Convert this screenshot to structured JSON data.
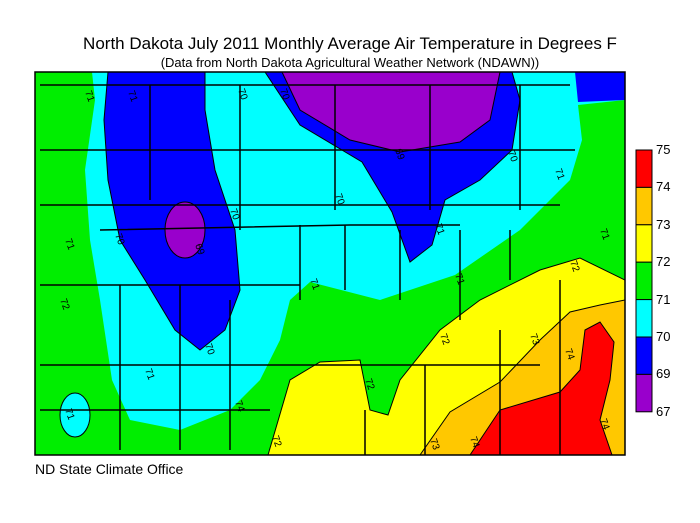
{
  "title": "North Dakota July 2011 Monthly Average Air Temperature in Degrees F",
  "subtitle": "(Data from North Dakota Agricultural Weather Network (NDAWN))",
  "footer": "ND State Climate Office",
  "legend": [
    {
      "label": "75",
      "color": "#ff0000"
    },
    {
      "label": "74",
      "color": "#ffc800"
    },
    {
      "label": "73",
      "color": "#ffff00"
    },
    {
      "label": "72",
      "color": "#00ee00"
    },
    {
      "label": "71",
      "color": "#00ffff"
    },
    {
      "label": "70",
      "color": "#0000ff"
    },
    {
      "label": "69",
      "color": "#9900cc"
    },
    {
      "label": "67",
      "color": null
    }
  ],
  "contour_labels": [
    "71",
    "71",
    "70",
    "70",
    "69",
    "70",
    "71",
    "71",
    "70",
    "70",
    "69",
    "70",
    "71",
    "71",
    "72",
    "72",
    "71",
    "72",
    "73",
    "74",
    "74",
    "71",
    "70",
    "71",
    "71",
    "72",
    "73",
    "74",
    "74",
    "72"
  ]
}
